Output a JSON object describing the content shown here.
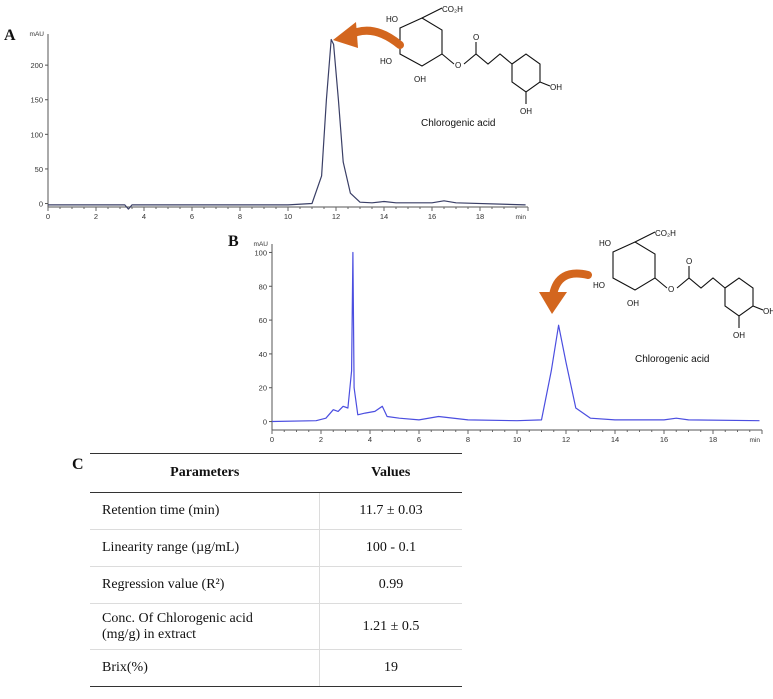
{
  "panels": {
    "a": "A",
    "b": "B",
    "c": "C"
  },
  "molecule_label": "Chlorogenic acid",
  "atoms": {
    "cooh": "CO₂H",
    "ho": "HO",
    "oh": "OH",
    "o": "O"
  },
  "colors": {
    "trace_a": "#3a3f66",
    "trace_b": "#4b4ee0",
    "arrow": "#d3661e"
  },
  "chart_data": [
    {
      "type": "line",
      "ylabel": "mAU",
      "xunit": "min",
      "xlim": [
        0,
        20
      ],
      "ylim": [
        -5,
        245
      ],
      "xticks": [
        0,
        2,
        4,
        6,
        8,
        10,
        12,
        14,
        16,
        18
      ],
      "yticks": [
        0,
        50,
        100,
        150,
        200
      ],
      "x": [
        0,
        2,
        3.2,
        3.35,
        3.5,
        4,
        6,
        8,
        10,
        11,
        11.4,
        11.6,
        11.8,
        11.9,
        12.1,
        12.3,
        12.6,
        13,
        13.5,
        14,
        14.5,
        16,
        16.5,
        17,
        19.9
      ],
      "values": [
        -2,
        -2,
        -2,
        -8,
        -2,
        -2,
        -2,
        -2,
        -2,
        0,
        40,
        150,
        237,
        230,
        150,
        60,
        15,
        2,
        1,
        3,
        1,
        1,
        4,
        1,
        -2
      ],
      "peaks": [
        {
          "x": 11.8,
          "label": "Chlorogenic acid"
        }
      ]
    },
    {
      "type": "line",
      "ylabel": "mAU",
      "xunit": "min",
      "xlim": [
        0,
        20
      ],
      "ylim": [
        -5,
        105
      ],
      "xticks": [
        0,
        2,
        4,
        6,
        8,
        10,
        12,
        14,
        16,
        18
      ],
      "yticks": [
        0,
        20,
        40,
        60,
        80,
        100
      ],
      "x": [
        0,
        1.8,
        2.2,
        2.5,
        2.7,
        2.9,
        3.1,
        3.25,
        3.3,
        3.35,
        3.5,
        3.8,
        4.2,
        4.5,
        4.7,
        5.2,
        6,
        6.8,
        8,
        10,
        11,
        11.4,
        11.7,
        12,
        12.4,
        13,
        14,
        16,
        16.5,
        17,
        19.9
      ],
      "values": [
        0,
        0.5,
        2,
        7,
        6,
        9,
        8,
        30,
        100,
        20,
        4,
        5,
        6,
        9,
        3,
        2,
        1,
        3,
        1,
        0.5,
        1,
        30,
        57,
        35,
        8,
        2,
        1,
        1,
        2,
        1,
        0.5
      ],
      "peaks": [
        {
          "x": 11.7,
          "label": "Chlorogenic acid"
        }
      ]
    },
    {
      "type": "table",
      "columns": [
        "Parameters",
        "Values"
      ],
      "rows": [
        [
          "Retention time (min)",
          "11.7 ± 0.03"
        ],
        [
          "Linearity range  (µg/mL)",
          "100 - 0.1"
        ],
        [
          "Regression value (R²)",
          "0.99"
        ],
        [
          "Conc. Of Chlorogenic acid (mg/g) in extract",
          "1.21 ± 0.5"
        ],
        [
          "Brix(%)",
          "19"
        ]
      ]
    }
  ]
}
